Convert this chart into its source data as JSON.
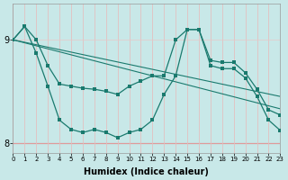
{
  "xlabel": "Humidex (Indice chaleur)",
  "bg_color": "#c8e8e8",
  "grid_color": "#e8f4f4",
  "line_color": "#1a7a6e",
  "hline_color": "#cc3333",
  "xlim": [
    0,
    23
  ],
  "ylim": [
    7.9,
    9.35
  ],
  "xticks": [
    0,
    1,
    2,
    3,
    4,
    5,
    6,
    7,
    8,
    9,
    10,
    11,
    12,
    13,
    14,
    15,
    16,
    17,
    18,
    19,
    20,
    21,
    22,
    23
  ],
  "yticks": [
    8,
    9
  ],
  "hline_y": 8.0,
  "curve_A_x": [
    0,
    1,
    2,
    3,
    4,
    5,
    6,
    7,
    8,
    9,
    10,
    11,
    12,
    13,
    14,
    15,
    16,
    17,
    18,
    19,
    20,
    21,
    22,
    23
  ],
  "curve_A_y": [
    9.0,
    9.13,
    8.87,
    8.55,
    8.22,
    8.13,
    8.1,
    8.13,
    8.1,
    8.05,
    8.1,
    8.13,
    8.22,
    8.47,
    8.65,
    9.1,
    9.1,
    8.75,
    8.72,
    8.72,
    8.63,
    8.45,
    8.22,
    8.12
  ],
  "curve_B_x": [
    0,
    1,
    2,
    3,
    4,
    5,
    6,
    7,
    8,
    9,
    10,
    11,
    12,
    13,
    14,
    15,
    16,
    17,
    18,
    19,
    20,
    21,
    22,
    23
  ],
  "curve_B_y": [
    9.0,
    9.13,
    9.0,
    8.75,
    8.57,
    8.55,
    8.53,
    8.52,
    8.5,
    8.47,
    8.55,
    8.6,
    8.65,
    8.65,
    9.0,
    9.1,
    9.1,
    8.8,
    8.78,
    8.78,
    8.68,
    8.52,
    8.32,
    8.27
  ],
  "trend1_x": [
    0,
    23
  ],
  "trend1_y": [
    9.0,
    8.45
  ],
  "trend2_x": [
    0,
    23
  ],
  "trend2_y": [
    9.0,
    8.33
  ]
}
